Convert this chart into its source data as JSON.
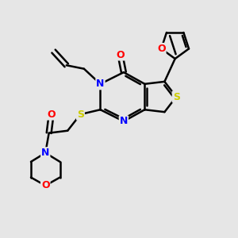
{
  "bg_color": "#e6e6e6",
  "bond_color": "#000000",
  "bond_width": 1.8,
  "atom_colors": {
    "N": "#0000ff",
    "O": "#ff0000",
    "S": "#cccc00"
  },
  "font_size": 9,
  "fig_bg": "#e6e6e6"
}
